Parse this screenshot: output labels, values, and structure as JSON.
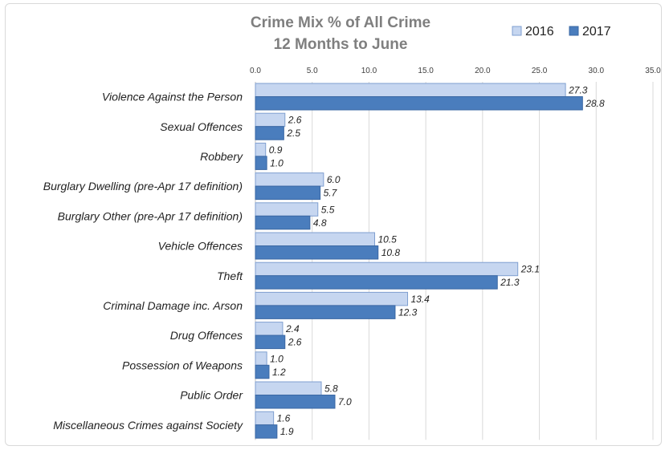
{
  "chart_data": {
    "type": "bar",
    "orientation": "horizontal",
    "title": "Crime Mix % of All Crime",
    "subtitle": "12 Months to June",
    "xlim": [
      0,
      35
    ],
    "ticks": [
      "0.0",
      "5.0",
      "10.0",
      "15.0",
      "20.0",
      "25.0",
      "30.0",
      "35.0"
    ],
    "axis_position": "top",
    "grid": true,
    "legend_position": "top-right",
    "categories": [
      "Violence Against the Person",
      "Sexual Offences",
      "Robbery",
      "Burglary Dwelling (pre-Apr 17 definition)",
      "Burglary Other (pre-Apr 17 definition)",
      "Vehicle Offences",
      "Theft",
      "Criminal Damage inc. Arson",
      "Drug Offences",
      "Possession of Weapons",
      "Public Order",
      "Miscellaneous Crimes against Society"
    ],
    "series": [
      {
        "name": "2016",
        "color": "#c6d6f0",
        "values": [
          27.3,
          2.6,
          0.9,
          6.0,
          5.5,
          10.5,
          23.1,
          13.4,
          2.4,
          1.0,
          5.8,
          1.6
        ]
      },
      {
        "name": "2017",
        "color": "#4a7dbd",
        "values": [
          28.8,
          2.5,
          1.0,
          5.7,
          4.8,
          10.8,
          21.3,
          12.3,
          2.6,
          1.2,
          7.0,
          1.9
        ]
      }
    ]
  }
}
